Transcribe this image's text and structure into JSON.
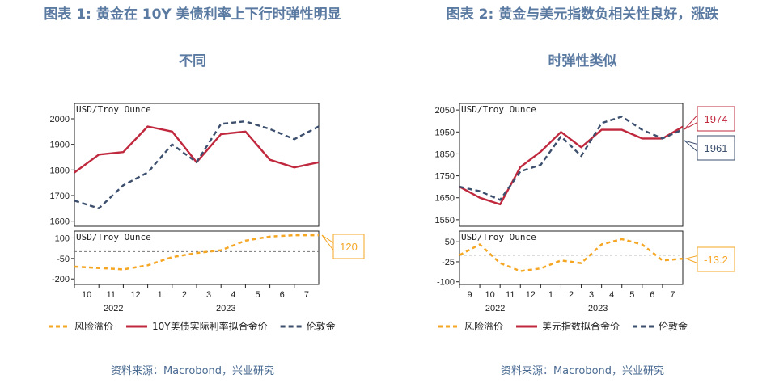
{
  "figures": [
    {
      "title": "图表 1:  黄金在 10Y 美债利率上下行时弹性明显",
      "subtitle": "不同",
      "source": "资料来源：Macrobond，兴业研究",
      "chart_data": {
        "type": "line",
        "x": [
          "2022-09-20",
          "2022-10-15",
          "2022-11-15",
          "2022-12-15",
          "2023-01-15",
          "2023-02-15",
          "2023-03-15",
          "2023-04-15",
          "2023-05-15",
          "2023-06-15",
          "2023-07-20"
        ],
        "x_ticks": [
          "10",
          "11",
          "12",
          "1",
          "2",
          "3",
          "4",
          "5",
          "6",
          "7"
        ],
        "x_year_labels": [
          "2022",
          "2023"
        ],
        "top": {
          "unit_label": "USD/Troy Ounce",
          "ylim": [
            1580,
            2060
          ],
          "y_ticks": [
            "1600",
            "1700",
            "1800",
            "1900",
            "2000"
          ],
          "series": [
            {
              "kind": "fit",
              "values": [
                1790,
                1860,
                1870,
                1970,
                1950,
                1830,
                1940,
                1950,
                1840,
                1810,
                1830
              ]
            },
            {
              "kind": "gold",
              "values": [
                1680,
                1650,
                1740,
                1790,
                1900,
                1830,
                1980,
                1990,
                1960,
                1920,
                1970
              ]
            }
          ]
        },
        "bottom": {
          "unit_label": "USD/Troy Ounce",
          "ylim": [
            -240,
            150
          ],
          "y_ticks": [
            "100",
            "-50",
            "-200"
          ],
          "series": [
            {
              "kind": "residual",
              "values": [
                -110,
                -120,
                -130,
                -100,
                -40,
                -10,
                10,
                80,
                110,
                120,
                120
              ]
            }
          ]
        },
        "callout": "120",
        "legend": [
          {
            "key": "residual",
            "label": "风险溢价",
            "color": "#f5a623"
          },
          {
            "key": "fit",
            "label": "10Y美债实际利率拟合金价",
            "color": "#c0283e"
          },
          {
            "key": "gold",
            "label": "伦敦金",
            "color": "#3c4f6e"
          }
        ]
      }
    },
    {
      "title": "图表 2:  黄金与美元指数负相关性良好，涨跌",
      "subtitle": "时弹性类似",
      "source": "资料来源：Macrobond，兴业研究",
      "chart_data": {
        "type": "line",
        "x": [
          "2022-08-20",
          "2022-09-15",
          "2022-10-15",
          "2022-11-15",
          "2022-12-15",
          "2023-01-15",
          "2023-02-15",
          "2023-03-15",
          "2023-04-15",
          "2023-05-15",
          "2023-06-15",
          "2023-07-20"
        ],
        "x_ticks": [
          "9",
          "10",
          "11",
          "12",
          "1",
          "2",
          "3",
          "4",
          "5",
          "6",
          "7"
        ],
        "x_year_labels": [
          "2022",
          "2023"
        ],
        "top": {
          "unit_label": "USD/Troy Ounce",
          "ylim": [
            1520,
            2080
          ],
          "y_ticks": [
            "2050",
            "1950",
            "1850",
            "1750",
            "1650",
            "1550"
          ],
          "series": [
            {
              "kind": "fit",
              "values": [
                1700,
                1650,
                1620,
                1790,
                1860,
                1950,
                1880,
                1960,
                1960,
                1920,
                1920,
                1974
              ]
            },
            {
              "kind": "gold",
              "values": [
                1700,
                1680,
                1640,
                1770,
                1800,
                1930,
                1840,
                1990,
                2020,
                1960,
                1920,
                1961
              ]
            }
          ]
        },
        "bottom": {
          "unit_label": "USD/Troy Ounce",
          "ylim": [
            -110,
            90
          ],
          "y_ticks": [
            "50",
            "-25",
            "-100"
          ],
          "series": [
            {
              "kind": "residual",
              "values": [
                0,
                40,
                -30,
                -60,
                -50,
                -20,
                -30,
                40,
                60,
                40,
                -20,
                -13.2
              ]
            }
          ]
        },
        "callouts": [
          "1974",
          "1961",
          "-13.2"
        ],
        "legend": [
          {
            "key": "residual",
            "label": "风险溢价",
            "color": "#f5a623"
          },
          {
            "key": "fit",
            "label": "美元指数拟合金价",
            "color": "#c0283e"
          },
          {
            "key": "gold",
            "label": "伦敦金",
            "color": "#3c4f6e"
          }
        ]
      }
    }
  ]
}
